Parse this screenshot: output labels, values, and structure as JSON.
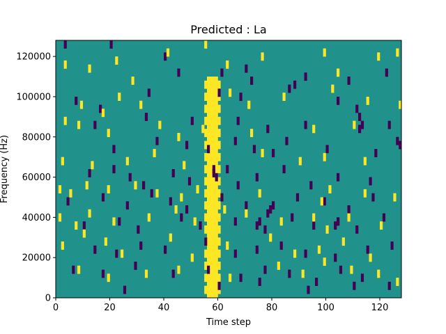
{
  "chart_data": {
    "type": "heatmap",
    "title": "Predicted : La",
    "xlabel": "Time step",
    "ylabel": "Frequency (Hz)",
    "xlim": [
      0,
      128
    ],
    "ylim": [
      0,
      128000
    ],
    "x_ticks": [
      {
        "value": 0,
        "label": "0"
      },
      {
        "value": 20,
        "label": "20"
      },
      {
        "value": 40,
        "label": "40"
      },
      {
        "value": 60,
        "label": "60"
      },
      {
        "value": 80,
        "label": "80"
      },
      {
        "value": 100,
        "label": "100"
      },
      {
        "value": 120,
        "label": "120"
      }
    ],
    "y_ticks": [
      {
        "value": 0,
        "label": "0"
      },
      {
        "value": 20000,
        "label": "20000"
      },
      {
        "value": 40000,
        "label": "40000"
      },
      {
        "value": 60000,
        "label": "60000"
      },
      {
        "value": 80000,
        "label": "80000"
      },
      {
        "value": 100000,
        "label": "100000"
      },
      {
        "value": 120000,
        "label": "120000"
      }
    ],
    "colormap": "viridis",
    "colors": {
      "low": "#440154",
      "mid": "#21918c",
      "high": "#fde725"
    },
    "background_value": "mid",
    "grid": false,
    "low_cells": [
      [
        3,
        124000
      ],
      [
        20,
        124000
      ],
      [
        40,
        118000
      ],
      [
        45,
        110000
      ],
      [
        61,
        110000
      ],
      [
        70,
        112000
      ],
      [
        72,
        106000
      ],
      [
        88,
        104000
      ],
      [
        92,
        108000
      ],
      [
        108,
        106000
      ],
      [
        122,
        110000
      ],
      [
        7,
        96000
      ],
      [
        16,
        92000
      ],
      [
        34,
        100000
      ],
      [
        60,
        100000
      ],
      [
        68,
        98000
      ],
      [
        86,
        102000
      ],
      [
        104,
        96000
      ],
      [
        111,
        92000
      ],
      [
        14,
        84000
      ],
      [
        33,
        88000
      ],
      [
        50,
        86000
      ],
      [
        67,
        86000
      ],
      [
        78,
        82000
      ],
      [
        92,
        84000
      ],
      [
        112,
        88000
      ],
      [
        123,
        84000
      ],
      [
        21,
        72000
      ],
      [
        37,
        76000
      ],
      [
        48,
        74000
      ],
      [
        56,
        72000
      ],
      [
        66,
        76000
      ],
      [
        73,
        72000
      ],
      [
        80,
        70000
      ],
      [
        85,
        76000
      ],
      [
        100,
        72000
      ],
      [
        118,
        70000
      ],
      [
        12,
        60000
      ],
      [
        21,
        62000
      ],
      [
        27,
        58000
      ],
      [
        32,
        54000
      ],
      [
        43,
        60000
      ],
      [
        49,
        56000
      ],
      [
        58,
        60000
      ],
      [
        63,
        62000
      ],
      [
        67,
        54000
      ],
      [
        74,
        58000
      ],
      [
        84,
        62000
      ],
      [
        94,
        54000
      ],
      [
        104,
        58000
      ],
      [
        116,
        56000
      ],
      [
        4,
        46000
      ],
      [
        17,
        48000
      ],
      [
        26,
        44000
      ],
      [
        35,
        50000
      ],
      [
        42,
        46000
      ],
      [
        48,
        42000
      ],
      [
        61,
        48000
      ],
      [
        70,
        44000
      ],
      [
        78,
        40000
      ],
      [
        89,
        48000
      ],
      [
        99,
        46000
      ],
      [
        108,
        42000
      ],
      [
        117,
        48000
      ],
      [
        10,
        34000
      ],
      [
        23,
        36000
      ],
      [
        30,
        32000
      ],
      [
        46,
        38000
      ],
      [
        53,
        34000
      ],
      [
        66,
        36000
      ],
      [
        77,
        32000
      ],
      [
        87,
        38000
      ],
      [
        95,
        34000
      ],
      [
        104,
        36000
      ],
      [
        111,
        32000
      ],
      [
        121,
        38000
      ],
      [
        14,
        22000
      ],
      [
        22,
        20000
      ],
      [
        31,
        24000
      ],
      [
        40,
        22000
      ],
      [
        55,
        26000
      ],
      [
        66,
        20000
      ],
      [
        74,
        22000
      ],
      [
        83,
        24000
      ],
      [
        92,
        20000
      ],
      [
        103,
        18000
      ],
      [
        115,
        22000
      ],
      [
        124,
        24000
      ],
      [
        6,
        12000
      ],
      [
        17,
        10000
      ],
      [
        29,
        14000
      ],
      [
        43,
        10000
      ],
      [
        56,
        12000
      ],
      [
        68,
        8000
      ],
      [
        77,
        12000
      ],
      [
        86,
        10000
      ],
      [
        96,
        6000
      ],
      [
        105,
        12000
      ],
      [
        113,
        8000
      ],
      [
        123,
        4000
      ],
      [
        25,
        2000
      ],
      [
        60,
        4000
      ],
      [
        75,
        6000
      ],
      [
        93,
        2000
      ],
      [
        110,
        4000
      ]
    ],
    "high_cells": [
      [
        3,
        114000
      ],
      [
        12,
        112000
      ],
      [
        22,
        116000
      ],
      [
        28,
        106000
      ],
      [
        41,
        120000
      ],
      [
        55,
        124000
      ],
      [
        63,
        114000
      ],
      [
        76,
        118000
      ],
      [
        99,
        120000
      ],
      [
        104,
        110000
      ],
      [
        119,
        118000
      ],
      [
        126,
        120000
      ],
      [
        9,
        94000
      ],
      [
        17,
        90000
      ],
      [
        23,
        98000
      ],
      [
        31,
        94000
      ],
      [
        57,
        96000
      ],
      [
        64,
        100000
      ],
      [
        71,
        94000
      ],
      [
        84,
        98000
      ],
      [
        102,
        102000
      ],
      [
        115,
        96000
      ],
      [
        127,
        94000
      ],
      [
        3,
        86000
      ],
      [
        8,
        84000
      ],
      [
        19,
        80000
      ],
      [
        38,
        84000
      ],
      [
        45,
        78000
      ],
      [
        54,
        82000
      ],
      [
        72,
        80000
      ],
      [
        95,
        82000
      ],
      [
        110,
        84000
      ],
      [
        2,
        66000
      ],
      [
        13,
        64000
      ],
      [
        26,
        66000
      ],
      [
        36,
        70000
      ],
      [
        47,
        64000
      ],
      [
        76,
        70000
      ],
      [
        90,
        66000
      ],
      [
        99,
        68000
      ],
      [
        114,
        66000
      ],
      [
        1,
        52000
      ],
      [
        5,
        50000
      ],
      [
        11,
        54000
      ],
      [
        19,
        52000
      ],
      [
        29,
        54000
      ],
      [
        37,
        50000
      ],
      [
        46,
        48000
      ],
      [
        52,
        52000
      ],
      [
        75,
        50000
      ],
      [
        98,
        46000
      ],
      [
        101,
        52000
      ],
      [
        114,
        50000
      ],
      [
        125,
        48000
      ],
      [
        1,
        38000
      ],
      [
        7,
        34000
      ],
      [
        12,
        40000
      ],
      [
        21,
        36000
      ],
      [
        34,
        38000
      ],
      [
        44,
        42000
      ],
      [
        51,
        36000
      ],
      [
        62,
        42000
      ],
      [
        70,
        40000
      ],
      [
        83,
        36000
      ],
      [
        95,
        38000
      ],
      [
        100,
        32000
      ],
      [
        108,
        38000
      ],
      [
        120,
        34000
      ],
      [
        2,
        24000
      ],
      [
        10,
        30000
      ],
      [
        18,
        26000
      ],
      [
        24,
        20000
      ],
      [
        42,
        28000
      ],
      [
        50,
        18000
      ],
      [
        63,
        24000
      ],
      [
        79,
        28000
      ],
      [
        88,
        20000
      ],
      [
        97,
        22000
      ],
      [
        106,
        26000
      ],
      [
        116,
        18000
      ],
      [
        8,
        12000
      ],
      [
        19,
        8000
      ],
      [
        33,
        10000
      ],
      [
        45,
        12000
      ],
      [
        64,
        8000
      ],
      [
        82,
        14000
      ],
      [
        91,
        10000
      ],
      [
        99,
        16000
      ],
      [
        109,
        12000
      ],
      [
        119,
        10000
      ],
      [
        126,
        6000
      ]
    ],
    "high_band": {
      "approx_x_start": 55,
      "approx_x_end": 60,
      "y_start": 0,
      "y_end": 110000
    },
    "dark_blocks": [
      [
        112,
        82000
      ],
      [
        113,
        84000
      ],
      [
        103,
        34000
      ],
      [
        104,
        36000
      ],
      [
        79,
        42000
      ],
      [
        80,
        44000
      ],
      [
        126,
        76000
      ],
      [
        127,
        74000
      ],
      [
        74,
        34000
      ],
      [
        75,
        36000
      ],
      [
        58,
        62000
      ],
      [
        59,
        58000
      ]
    ]
  }
}
